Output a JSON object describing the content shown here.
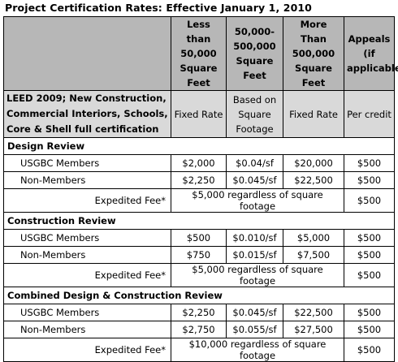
{
  "title": "Project Certification Rates: Effective January 1, 2010",
  "headers": [
    "Less than 50,000 Square Feet",
    "50,000-500,000 Square Feet",
    "More Than 500,000 Square Feet",
    "Appeals (if applicable)"
  ],
  "description": {
    "label": "LEED 2009; New Construction, Commercial Interiors, Schools, Core & Shell full certification",
    "cols": [
      "Fixed Rate",
      "Based on Square Footage",
      "Fixed Rate",
      "Per credit"
    ]
  },
  "sections": [
    {
      "name": "Design Review",
      "members": {
        "label": "USGBC Members",
        "v1": "$2,000",
        "v2": "$0.04/sf",
        "v3": "$20,000",
        "v4": "$500"
      },
      "nonmembers": {
        "label": "Non-Members",
        "v1": "$2,250",
        "v2": "$0.045/sf",
        "v3": "$22,500",
        "v4": "$500"
      },
      "expedited": {
        "label": "Expedited Fee*",
        "span": "$5,000 regardless of square footage",
        "v4": "$500"
      }
    },
    {
      "name": "Construction Review",
      "members": {
        "label": "USGBC Members",
        "v1": "$500",
        "v2": "$0.010/sf",
        "v3": "$5,000",
        "v4": "$500"
      },
      "nonmembers": {
        "label": "Non-Members",
        "v1": "$750",
        "v2": "$0.015/sf",
        "v3": "$7,500",
        "v4": "$500"
      },
      "expedited": {
        "label": "Expedited Fee*",
        "span": "$5,000 regardless of square footage",
        "v4": "$500"
      }
    },
    {
      "name": "Combined Design & Construction Review",
      "members": {
        "label": "USGBC Members",
        "v1": "$2,250",
        "v2": "$0.045/sf",
        "v3": "$22,500",
        "v4": "$500"
      },
      "nonmembers": {
        "label": "Non-Members",
        "v1": "$2,750",
        "v2": "$0.055/sf",
        "v3": "$27,500",
        "v4": "$500"
      },
      "expedited": {
        "label": "Expedited Fee*",
        "span": "$10,000 regardless of square footage",
        "v4": "$500"
      }
    }
  ]
}
